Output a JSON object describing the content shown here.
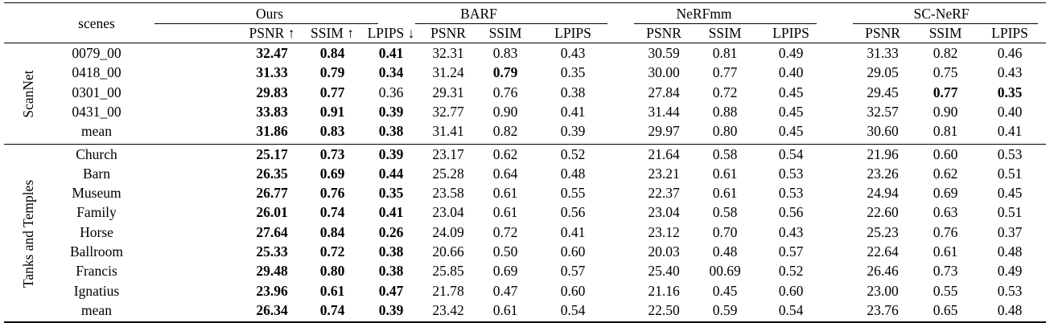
{
  "header": {
    "scenes_label": "scenes",
    "methods": [
      {
        "name": "Ours",
        "metrics": [
          "PSNR ↑",
          "SSIM ↑",
          "LPIPS ↓"
        ]
      },
      {
        "name": "BARF",
        "metrics": [
          "PSNR",
          "SSIM",
          "LPIPS"
        ]
      },
      {
        "name": "NeRFmm",
        "metrics": [
          "PSNR",
          "SSIM",
          "LPIPS"
        ]
      },
      {
        "name": "SC-NeRF",
        "metrics": [
          "PSNR",
          "SSIM",
          "LPIPS"
        ]
      }
    ]
  },
  "groups": [
    {
      "name": "ScanNet",
      "rows": [
        {
          "scene": "0079_00",
          "values": [
            "32.47",
            "0.84",
            "0.41",
            "32.31",
            "0.83",
            "0.43",
            "30.59",
            "0.81",
            "0.49",
            "31.33",
            "0.82",
            "0.46"
          ],
          "bold": [
            0,
            1,
            2
          ]
        },
        {
          "scene": "0418_00",
          "values": [
            "31.33",
            "0.79",
            "0.34",
            "31.24",
            "0.79",
            "0.35",
            "30.00",
            "0.77",
            "0.40",
            "29.05",
            "0.75",
            "0.43"
          ],
          "bold": [
            0,
            1,
            2,
            4
          ]
        },
        {
          "scene": "0301_00",
          "values": [
            "29.83",
            "0.77",
            "0.36",
            "29.31",
            "0.76",
            "0.38",
            "27.84",
            "0.72",
            "0.45",
            "29.45",
            "0.77",
            "0.35"
          ],
          "bold": [
            0,
            1,
            10,
            11
          ]
        },
        {
          "scene": "0431_00",
          "values": [
            "33.83",
            "0.91",
            "0.39",
            "32.77",
            "0.90",
            "0.41",
            "31.44",
            "0.88",
            "0.45",
            "32.57",
            "0.90",
            "0.40"
          ],
          "bold": [
            0,
            1,
            2
          ]
        },
        {
          "scene": "mean",
          "values": [
            "31.86",
            "0.83",
            "0.38",
            "31.41",
            "0.82",
            "0.39",
            "29.97",
            "0.80",
            "0.45",
            "30.60",
            "0.81",
            "0.41"
          ],
          "bold": [
            0,
            1,
            2
          ]
        }
      ]
    },
    {
      "name": "Tanks and Temples",
      "rows": [
        {
          "scene": "Church",
          "values": [
            "25.17",
            "0.73",
            "0.39",
            "23.17",
            "0.62",
            "0.52",
            "21.64",
            "0.58",
            "0.54",
            "21.96",
            "0.60",
            "0.53"
          ],
          "bold": [
            0,
            1,
            2
          ]
        },
        {
          "scene": "Barn",
          "values": [
            "26.35",
            "0.69",
            "0.44",
            "25.28",
            "0.64",
            "0.48",
            "23.21",
            "0.61",
            "0.53",
            "23.26",
            "0.62",
            "0.51"
          ],
          "bold": [
            0,
            1,
            2
          ]
        },
        {
          "scene": "Museum",
          "values": [
            "26.77",
            "0.76",
            "0.35",
            "23.58",
            "0.61",
            "0.55",
            "22.37",
            "0.61",
            "0.53",
            "24.94",
            "0.69",
            "0.45"
          ],
          "bold": [
            0,
            1,
            2
          ]
        },
        {
          "scene": "Family",
          "values": [
            "26.01",
            "0.74",
            "0.41",
            "23.04",
            "0.61",
            "0.56",
            "23.04",
            "0.58",
            "0.56",
            "22.60",
            "0.63",
            "0.51"
          ],
          "bold": [
            0,
            1,
            2
          ]
        },
        {
          "scene": "Horse",
          "values": [
            "27.64",
            "0.84",
            "0.26",
            "24.09",
            "0.72",
            "0.41",
            "23.12",
            "0.70",
            "0.43",
            "25.23",
            "0.76",
            "0.37"
          ],
          "bold": [
            0,
            1,
            2
          ]
        },
        {
          "scene": "Ballroom",
          "values": [
            "25.33",
            "0.72",
            "0.38",
            "20.66",
            "0.50",
            "0.60",
            "20.03",
            "0.48",
            "0.57",
            "22.64",
            "0.61",
            "0.48"
          ],
          "bold": [
            0,
            1,
            2
          ]
        },
        {
          "scene": "Francis",
          "values": [
            "29.48",
            "0.80",
            "0.38",
            "25.85",
            "0.69",
            "0.57",
            "25.40",
            "00.69",
            "0.52",
            "26.46",
            "0.73",
            "0.49"
          ],
          "bold": [
            0,
            1,
            2
          ]
        },
        {
          "scene": "Ignatius",
          "values": [
            "23.96",
            "0.61",
            "0.47",
            "21.78",
            "0.47",
            "0.60",
            "21.16",
            "0.45",
            "0.60",
            "23.00",
            "0.55",
            "0.53"
          ],
          "bold": [
            0,
            1,
            2
          ]
        },
        {
          "scene": "mean",
          "values": [
            "26.34",
            "0.74",
            "0.39",
            "23.42",
            "0.61",
            "0.54",
            "22.50",
            "0.59",
            "0.54",
            "23.76",
            "0.65",
            "0.48"
          ],
          "bold": [
            0,
            1,
            2
          ]
        }
      ]
    }
  ]
}
